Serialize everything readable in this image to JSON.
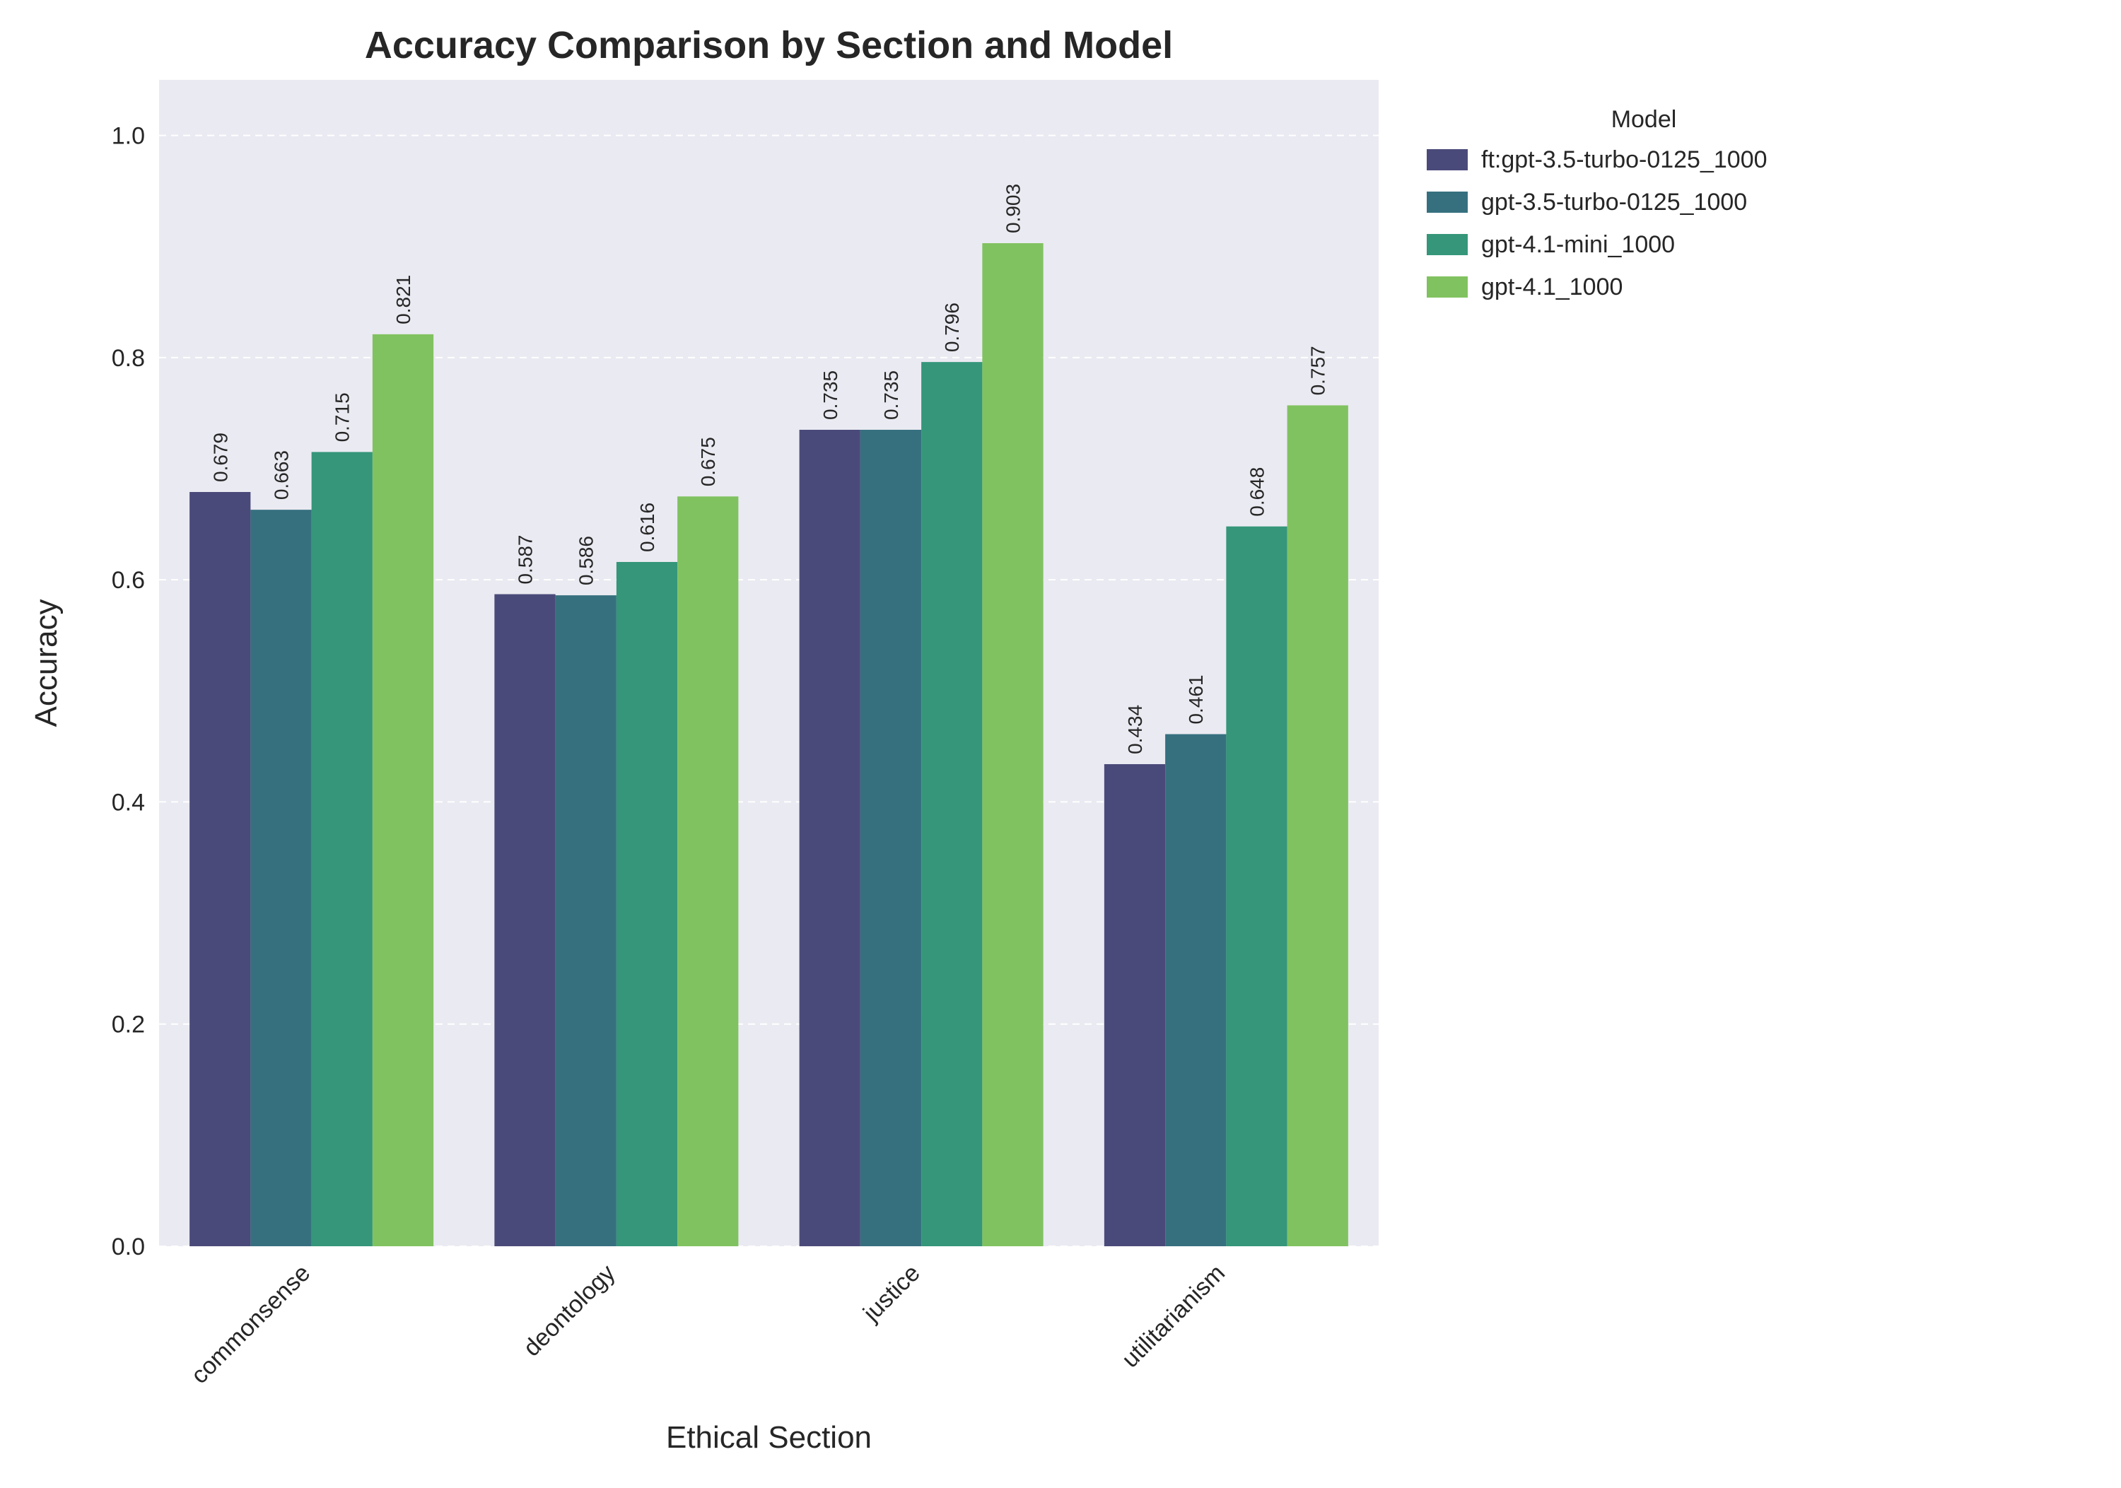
{
  "chart_data": {
    "type": "bar",
    "title": "Accuracy Comparison by Section and Model",
    "xlabel": "Ethical Section",
    "ylabel": "Accuracy",
    "ylim": [
      0,
      1.05
    ],
    "yticks": [
      0.0,
      0.2,
      0.4,
      0.6,
      0.8,
      1.0
    ],
    "categories": [
      "commonsense",
      "deontology",
      "justice",
      "utilitarianism"
    ],
    "grid": true,
    "legend": {
      "title": "Model",
      "placement": "outside-upper-right"
    },
    "series": [
      {
        "name": "ft:gpt-3.5-turbo-0125_1000",
        "color": "#4a4a7a",
        "values": [
          0.679,
          0.587,
          0.735,
          0.434
        ]
      },
      {
        "name": "gpt-3.5-turbo-0125_1000",
        "color": "#36707f",
        "values": [
          0.663,
          0.586,
          0.735,
          0.461
        ]
      },
      {
        "name": "gpt-4.1-mini_1000",
        "color": "#35967a",
        "values": [
          0.715,
          0.616,
          0.796,
          0.648
        ]
      },
      {
        "name": "gpt-4.1_1000",
        "color": "#81c260",
        "values": [
          0.821,
          0.675,
          0.903,
          0.757
        ]
      }
    ],
    "colors": {
      "plot_background": "#eaeaf2",
      "grid": "#ffffff",
      "text": "#262626"
    }
  }
}
